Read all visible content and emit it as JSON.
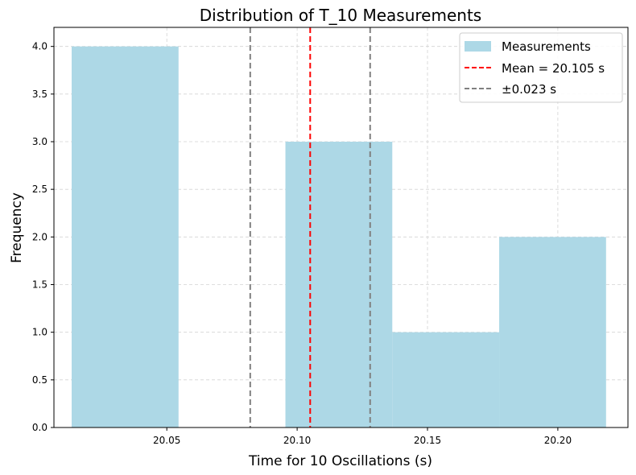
{
  "chart_data": {
    "type": "bar",
    "title": "Distribution of T_10 Measurements",
    "xlabel": "Time for 10 Oscillations (s)",
    "ylabel": "Frequency",
    "xlim": [
      20.0067,
      20.2269
    ],
    "ylim": [
      0,
      4.2
    ],
    "xticks": [
      "20.05",
      "20.10",
      "20.15",
      "20.20"
    ],
    "xtick_values": [
      20.05,
      20.1,
      20.15,
      20.2
    ],
    "yticks": [
      "0.0",
      "0.5",
      "1.0",
      "1.5",
      "2.0",
      "2.5",
      "3.0",
      "3.5",
      "4.0"
    ],
    "ytick_values": [
      0,
      0.5,
      1,
      1.5,
      2,
      2.5,
      3,
      3.5,
      4
    ],
    "grid": true,
    "legend_position": "top-right",
    "histogram": {
      "name": "Measurements",
      "color": "#add8e6",
      "bins": [
        {
          "x0": 20.0135,
          "x1": 20.0545,
          "count": 4
        },
        {
          "x0": 20.0545,
          "x1": 20.0955,
          "count": 0
        },
        {
          "x0": 20.0955,
          "x1": 20.1365,
          "count": 3
        },
        {
          "x0": 20.1365,
          "x1": 20.1775,
          "count": 1
        },
        {
          "x0": 20.1775,
          "x1": 20.2185,
          "count": 2
        }
      ]
    },
    "mean_line": {
      "label": "Mean = 20.105 s",
      "value": 20.105,
      "color": "#ff0000"
    },
    "std_lines": {
      "label": "±0.023 s",
      "values": [
        20.082,
        20.128
      ],
      "color": "#808080"
    }
  }
}
